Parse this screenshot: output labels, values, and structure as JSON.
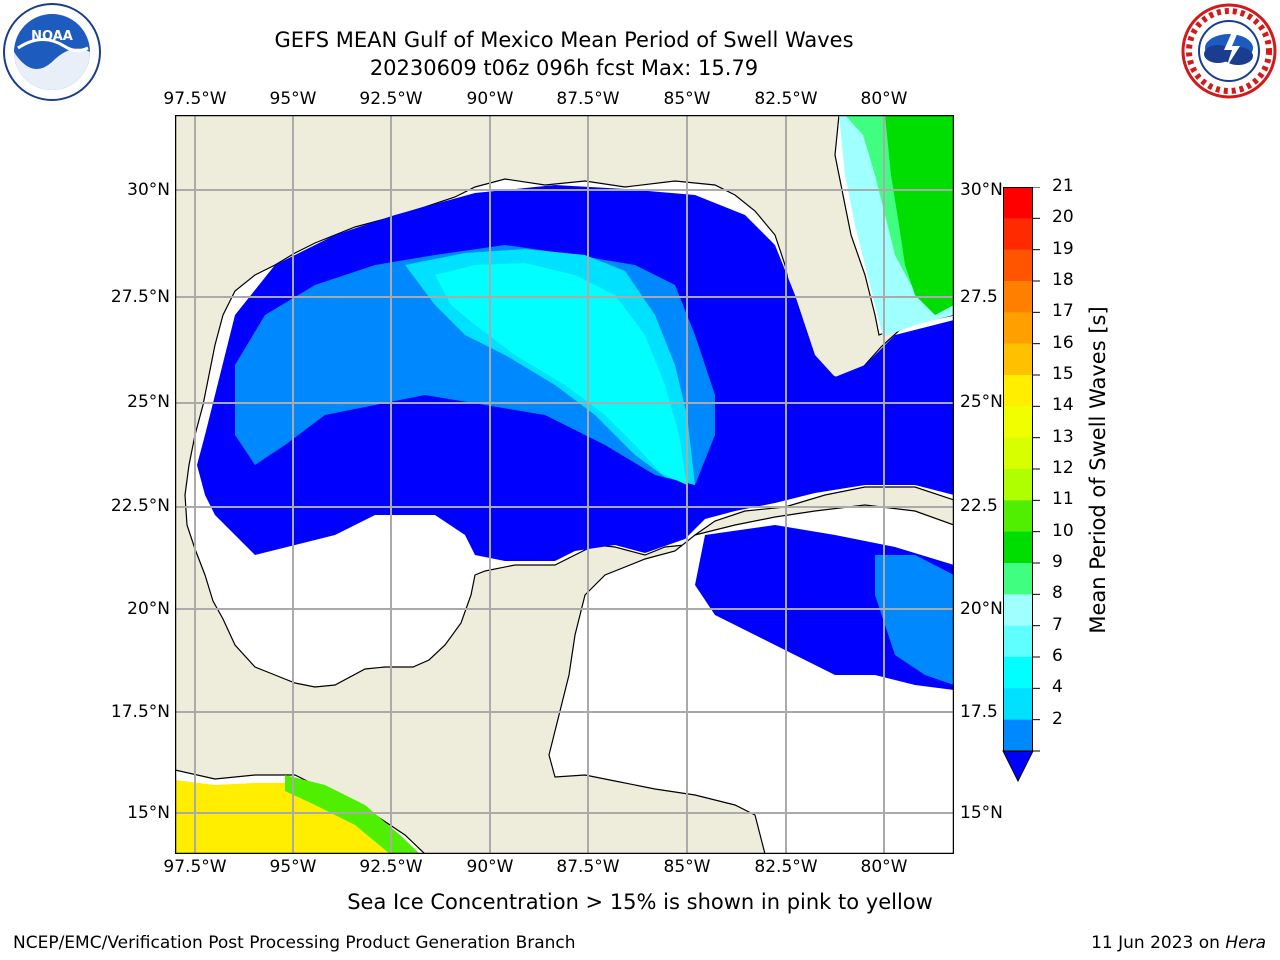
{
  "title_line1": "GEFS MEAN Gulf of Mexico Mean Period of Swell Waves",
  "title_line2": "20230609 t06z 096h fcst   Max: 15.79",
  "lon_labels": [
    "97.5°W",
    "95°W",
    "92.5°W",
    "90°W",
    "87.5°W",
    "85°W",
    "82.5°W",
    "80°W"
  ],
  "lat_labels_left": [
    "30°N",
    "27.5°N",
    "25°N",
    "22.5°N",
    "20°N",
    "17.5°N",
    "15°N"
  ],
  "lat_labels_right": [
    "30°N",
    "27.5",
    "25°N",
    "22.5",
    "20°N",
    "17.5",
    "15°N"
  ],
  "colorbar": {
    "label": "Mean Period of Swell Waves [s]",
    "ticks": [
      "21",
      "20",
      "19",
      "18",
      "17",
      "16",
      "15",
      "14",
      "13",
      "12",
      "11",
      "10",
      "9",
      "8",
      "7",
      "6",
      "4",
      "2"
    ],
    "colors": [
      "#ff0000",
      "#ff2a00",
      "#ff5500",
      "#ff8000",
      "#ffa000",
      "#ffc000",
      "#ffee00",
      "#f0ff00",
      "#d8ff00",
      "#b0ff00",
      "#50ee00",
      "#00dd00",
      "#40ff80",
      "#a0ffff",
      "#60ffff",
      "#00ffff",
      "#00e0ff",
      "#0088ff",
      "#0000ff"
    ]
  },
  "note": "Sea Ice Concentration > 15% is shown in pink to yellow",
  "footer_left": "NCEP/EMC/Verification Post Processing Product Generation Branch",
  "footer_right_date": "11 Jun 2023 on ",
  "footer_right_host": "Hera",
  "logos": {
    "noaa": {
      "icon": "noaa-logo",
      "text": "NOAA"
    },
    "nws": {
      "icon": "nws-logo"
    }
  }
}
